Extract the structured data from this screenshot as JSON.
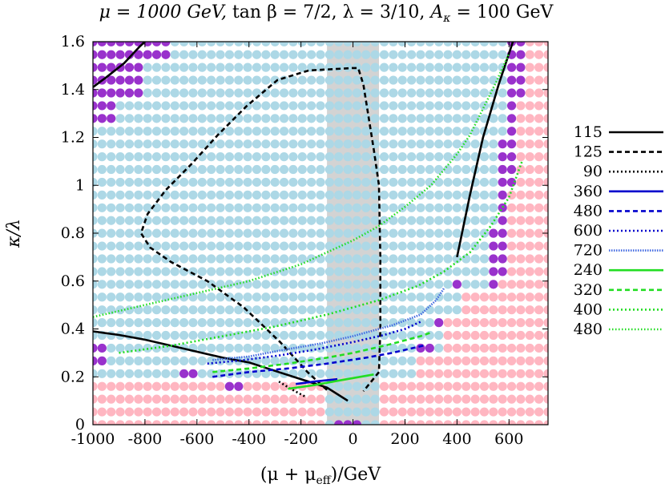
{
  "chart_data": {
    "type": "scatter",
    "title": "μ = 1000 GeV, tan β = 7/2, λ = 3/10, A_κ = 100 GeV",
    "title_parts": {
      "mu_part": "μ = 1000 GeV, ",
      "tan_part": "tan β = 7/2, ",
      "lambda_part": "λ = 3/10, ",
      "akappa_sym": "A",
      "akappa_sub": "κ",
      "akappa_val": " = 100 GeV"
    },
    "xlabel": "(μ + μ_eff)/GeV",
    "xlabel_parts": {
      "pre": "(μ + μ",
      "sub": "eff",
      "post": ")/GeV"
    },
    "ylabel": "κ/λ",
    "xlim": [
      -1000,
      750
    ],
    "ylim": [
      0,
      1.6
    ],
    "xticks": [
      "-1000",
      "-800",
      "-600",
      "-400",
      "-200",
      "0",
      "200",
      "400",
      "600"
    ],
    "xtick_values": [
      -1000,
      -800,
      -600,
      -400,
      -200,
      0,
      200,
      400,
      600
    ],
    "yticks": [
      "0",
      "0.2",
      "0.4",
      "0.6",
      "0.8",
      "1",
      "1.2",
      "1.4",
      "1.6"
    ],
    "ytick_values": [
      0,
      0.2,
      0.4,
      0.6,
      0.8,
      1.0,
      1.2,
      1.4,
      1.6
    ],
    "shaded_band": {
      "x_range": [
        -100,
        100
      ],
      "color": "#d3d3d3"
    },
    "point_grid": {
      "x_start": -1000,
      "x_step": 35,
      "y_start": 0,
      "y_step": 0.0533,
      "colors": {
        "allowed": "#add8e6",
        "excluded_pink": "#ffb6c1",
        "excluded_purple": "#9932cc"
      }
    },
    "series": [
      {
        "name": "115",
        "group": "black",
        "color": "#000000",
        "dash": "solid",
        "segments": [
          [
            [
              -1000,
              0.39
            ],
            [
              -900,
              0.375
            ],
            [
              -800,
              0.355
            ],
            [
              -700,
              0.33
            ],
            [
              -600,
              0.305
            ],
            [
              -500,
              0.28
            ],
            [
              -400,
              0.26
            ],
            [
              -300,
              0.225
            ],
            [
              -200,
              0.19
            ],
            [
              -100,
              0.155
            ],
            [
              -20,
              0.1
            ]
          ],
          [
            [
              -1000,
              1.41
            ],
            [
              -950,
              1.45
            ],
            [
              -880,
              1.51
            ],
            [
              -820,
              1.58
            ],
            [
              -800,
              1.6
            ]
          ],
          [
            [
              400,
              0.7
            ],
            [
              450,
              0.96
            ],
            [
              500,
              1.2
            ],
            [
              560,
              1.42
            ],
            [
              615,
              1.6
            ]
          ]
        ]
      },
      {
        "name": "125",
        "group": "black",
        "color": "#000000",
        "dash": "dashed",
        "segments": [
          [
            [
              -100,
              0.145
            ],
            [
              -175,
              0.22
            ],
            [
              -280,
              0.345
            ],
            [
              -420,
              0.49
            ],
            [
              -560,
              0.6
            ],
            [
              -700,
              0.68
            ],
            [
              -780,
              0.74
            ],
            [
              -815,
              0.8
            ],
            [
              -790,
              0.88
            ],
            [
              -720,
              0.98
            ],
            [
              -620,
              1.09
            ],
            [
              -520,
              1.21
            ],
            [
              -410,
              1.33
            ],
            [
              -290,
              1.44
            ],
            [
              -170,
              1.48
            ],
            [
              0,
              1.49
            ],
            [
              20,
              1.49
            ],
            [
              40,
              1.42
            ],
            [
              80,
              1.15
            ],
            [
              100,
              1.0
            ],
            [
              105,
              0.7
            ],
            [
              105,
              0.4
            ],
            [
              100,
              0.22
            ],
            [
              40,
              0.14
            ]
          ]
        ]
      },
      {
        "name": "90",
        "group": "black",
        "color": "#000000",
        "dash": "dotted",
        "segments": [
          [
            [
              -285,
              0.18
            ],
            [
              -240,
              0.15
            ],
            [
              -180,
              0.115
            ]
          ]
        ]
      },
      {
        "name": "360",
        "group": "blue",
        "color": "#0000cd",
        "dash": "solid",
        "segments": [
          [
            [
              -220,
              0.17
            ],
            [
              -150,
              0.18
            ],
            [
              -60,
              0.19
            ]
          ]
        ]
      },
      {
        "name": "480",
        "group": "blue",
        "color": "#0000cd",
        "dash": "dashed",
        "segments": [
          [
            [
              -540,
              0.2
            ],
            [
              -400,
              0.22
            ],
            [
              -250,
              0.235
            ],
            [
              -100,
              0.255
            ],
            [
              50,
              0.28
            ],
            [
              150,
              0.3
            ],
            [
              270,
              0.33
            ]
          ]
        ]
      },
      {
        "name": "600",
        "group": "blue",
        "color": "#0000cd",
        "dash": "dotted",
        "segments": [
          [
            [
              -560,
              0.255
            ],
            [
              -420,
              0.27
            ],
            [
              -280,
              0.29
            ],
            [
              -140,
              0.315
            ],
            [
              0,
              0.345
            ],
            [
              120,
              0.375
            ],
            [
              200,
              0.4
            ],
            [
              260,
              0.43
            ]
          ]
        ]
      },
      {
        "name": "720",
        "group": "blue",
        "color": "#4169e1",
        "dash": "dense",
        "segments": [
          [
            [
              -540,
              0.27
            ],
            [
              -400,
              0.285
            ],
            [
              -280,
              0.31
            ],
            [
              -120,
              0.34
            ],
            [
              0,
              0.37
            ],
            [
              150,
              0.415
            ],
            [
              260,
              0.46
            ],
            [
              320,
              0.52
            ],
            [
              350,
              0.57
            ]
          ]
        ]
      },
      {
        "name": "240",
        "group": "green",
        "color": "#22dd22",
        "dash": "solid",
        "segments": [
          [
            [
              -250,
              0.15
            ],
            [
              -150,
              0.165
            ],
            [
              -50,
              0.185
            ],
            [
              80,
              0.21
            ]
          ]
        ]
      },
      {
        "name": "320",
        "group": "green",
        "color": "#22dd22",
        "dash": "dashed",
        "segments": [
          [
            [
              -540,
              0.22
            ],
            [
              -400,
              0.235
            ],
            [
              -250,
              0.255
            ],
            [
              -100,
              0.28
            ],
            [
              0,
              0.3
            ],
            [
              140,
              0.335
            ],
            [
              260,
              0.37
            ],
            [
              300,
              0.385
            ]
          ]
        ]
      },
      {
        "name": "400",
        "group": "green",
        "color": "#22dd22",
        "dash": "dotted",
        "segments": [
          [
            [
              -900,
              0.3
            ],
            [
              -700,
              0.33
            ],
            [
              -500,
              0.37
            ],
            [
              -300,
              0.41
            ],
            [
              -100,
              0.46
            ],
            [
              100,
              0.52
            ],
            [
              250,
              0.58
            ],
            [
              350,
              0.64
            ],
            [
              450,
              0.72
            ],
            [
              530,
              0.83
            ],
            [
              600,
              0.95
            ],
            [
              650,
              1.1
            ]
          ]
        ]
      },
      {
        "name": "480",
        "group": "green",
        "color": "#22dd22",
        "dash": "finedot",
        "segments": [
          [
            [
              -1000,
              0.45
            ],
            [
              -800,
              0.5
            ],
            [
              -600,
              0.55
            ],
            [
              -400,
              0.6
            ],
            [
              -200,
              0.67
            ],
            [
              0,
              0.77
            ],
            [
              100,
              0.83
            ],
            [
              200,
              0.91
            ],
            [
              300,
              1.0
            ],
            [
              400,
              1.13
            ],
            [
              450,
              1.21
            ],
            [
              500,
              1.32
            ],
            [
              550,
              1.43
            ],
            [
              600,
              1.55
            ]
          ]
        ]
      }
    ],
    "legend_position": "right"
  }
}
